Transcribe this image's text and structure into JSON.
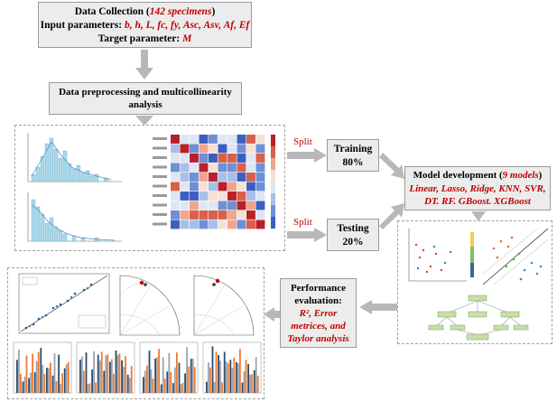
{
  "data_collection": {
    "line1_prefix": "Data Collection (",
    "line1_red": "142 specimens",
    "line1_suffix": ")",
    "line2_prefix": "Input parameters: ",
    "line2_red": "b, h, L, fc, fy, Asc, Asv, Af, Ef",
    "line3_prefix": "Target parameter: ",
    "line3_red": "M"
  },
  "preprocessing": {
    "line1": "Data preprocessing and multicollinearity",
    "line2": "analysis"
  },
  "split_labels": {
    "top": "Split",
    "bottom": "Split"
  },
  "training": {
    "label": "Training",
    "pct": "80%"
  },
  "testing": {
    "label": "Testing",
    "pct": "20%"
  },
  "model_dev": {
    "line1_prefix": "Model development (",
    "line1_red": "9 models",
    "line1_suffix": ")",
    "line2": "Linear, Lasso, Ridge, KNN, SVR,",
    "line3": "DT. RF. GBoost. XGBoost"
  },
  "performance": {
    "line1": "Performance",
    "line2": "evaluation:",
    "line3": "R², Error",
    "line4": "metrices, and",
    "line5": "Taylor analysis"
  },
  "colors": {
    "box_fill": "#ececec",
    "box_border": "#9a9a9a",
    "arrow": "#b8b8b8",
    "accent_red": "#c00000",
    "hist_blue": "#a8d8ea"
  }
}
